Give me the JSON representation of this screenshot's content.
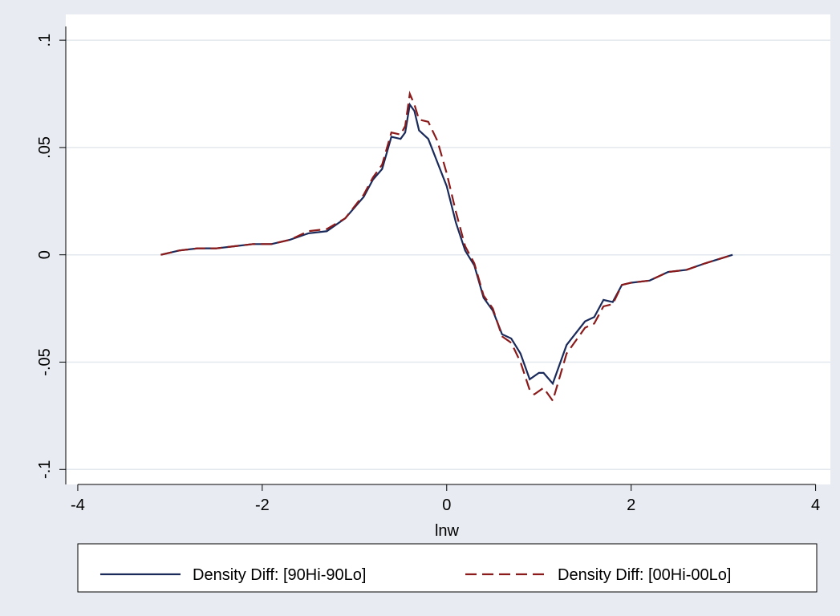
{
  "chart_data": {
    "type": "line",
    "x_label": "lnw",
    "series": [
      {
        "name": "Density Diff: [90Hi-90Lo]",
        "color": "#1a2a5a",
        "dash": "solid",
        "x": [
          -3.1,
          -2.9,
          -2.7,
          -2.5,
          -2.3,
          -2.1,
          -1.9,
          -1.7,
          -1.5,
          -1.3,
          -1.1,
          -0.9,
          -0.8,
          -0.7,
          -0.6,
          -0.5,
          -0.45,
          -0.4,
          -0.35,
          -0.3,
          -0.2,
          -0.1,
          0,
          0.1,
          0.2,
          0.3,
          0.4,
          0.5,
          0.6,
          0.7,
          0.8,
          0.9,
          1.0,
          1.05,
          1.15,
          1.3,
          1.5,
          1.6,
          1.7,
          1.8,
          1.9,
          2.0,
          2.2,
          2.4,
          2.6,
          2.8,
          3.1
        ],
        "values": [
          0,
          0.002,
          0.003,
          0.003,
          0.004,
          0.005,
          0.005,
          0.007,
          0.01,
          0.011,
          0.017,
          0.027,
          0.035,
          0.04,
          0.055,
          0.054,
          0.057,
          0.07,
          0.067,
          0.058,
          0.054,
          0.043,
          0.032,
          0.015,
          0.002,
          -0.005,
          -0.02,
          -0.026,
          -0.037,
          -0.039,
          -0.046,
          -0.058,
          -0.055,
          -0.055,
          -0.06,
          -0.042,
          -0.031,
          -0.029,
          -0.021,
          -0.022,
          -0.014,
          -0.013,
          -0.012,
          -0.008,
          -0.007,
          -0.004,
          0
        ]
      },
      {
        "name": "Density Diff: [00Hi-00Lo]",
        "color": "#8b1a1a",
        "dash": "dashed",
        "x": [
          -3.1,
          -2.9,
          -2.7,
          -2.5,
          -2.3,
          -2.1,
          -1.9,
          -1.7,
          -1.5,
          -1.3,
          -1.1,
          -0.9,
          -0.8,
          -0.7,
          -0.6,
          -0.5,
          -0.45,
          -0.4,
          -0.35,
          -0.3,
          -0.2,
          -0.1,
          0,
          0.1,
          0.2,
          0.3,
          0.4,
          0.5,
          0.6,
          0.7,
          0.8,
          0.9,
          0.95,
          1.05,
          1.15,
          1.3,
          1.5,
          1.6,
          1.7,
          1.8,
          1.9,
          2.0,
          2.2,
          2.4,
          2.6,
          2.8,
          3.1
        ],
        "values": [
          0,
          0.002,
          0.003,
          0.003,
          0.004,
          0.005,
          0.005,
          0.007,
          0.011,
          0.012,
          0.017,
          0.028,
          0.036,
          0.042,
          0.057,
          0.056,
          0.06,
          0.075,
          0.07,
          0.063,
          0.062,
          0.053,
          0.038,
          0.02,
          0.004,
          -0.004,
          -0.019,
          -0.025,
          -0.038,
          -0.041,
          -0.05,
          -0.063,
          -0.065,
          -0.062,
          -0.068,
          -0.046,
          -0.034,
          -0.032,
          -0.024,
          -0.023,
          -0.014,
          -0.013,
          -0.012,
          -0.008,
          -0.007,
          -0.004,
          0
        ]
      }
    ],
    "xlim": [
      -4.13,
      4.16
    ],
    "ylim": [
      -0.107,
      0.112
    ],
    "xticks": [
      -4,
      -2,
      0,
      2,
      4
    ],
    "yticks": [
      {
        "value": -0.1,
        "label": "-.1"
      },
      {
        "value": -0.05,
        "label": "-.05"
      },
      0,
      {
        "value": 0.05,
        "label": ".05"
      },
      {
        "value": 0.1,
        "label": ".1"
      }
    ],
    "grid": true,
    "legend": "bottom"
  }
}
